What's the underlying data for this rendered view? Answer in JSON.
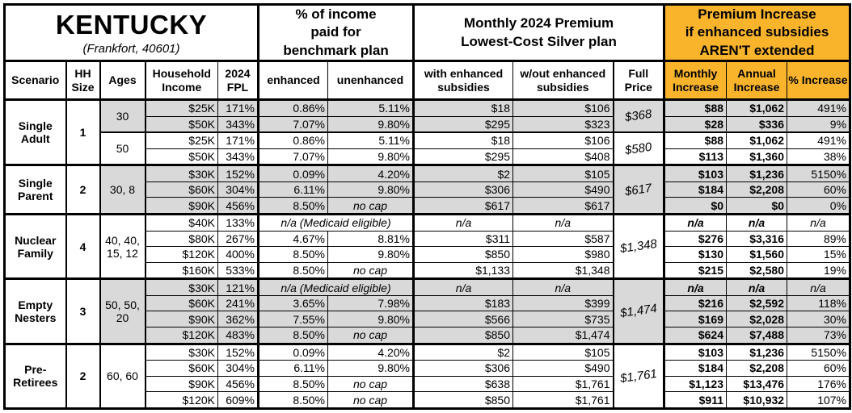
{
  "colors": {
    "accent": "#F9B42C",
    "shade": "#D9D9D9"
  },
  "table": {
    "title": "KENTUCKY",
    "subtitle": "(Frankfort, 40601)",
    "sections": {
      "benchmark": "% of income\npaid for\nbenchmark plan",
      "premium": "Monthly 2024 Premium\nLowest-Cost Silver plan",
      "increase": "Premium Increase\nif enhanced subsidies\nAREN'T extended"
    },
    "columns": {
      "scenario": "Scenario",
      "hh": "HH Size",
      "ages": "Ages",
      "income": "Household Income",
      "fpl": "2024 FPL",
      "enhanced": "enhanced",
      "unenhanced": "unenhanced",
      "with_sub": "with enhanced subsidies",
      "wout_sub": "w/out enhanced subsidies",
      "full": "Full Price",
      "monthly": "Monthly Increase",
      "annual": "Annual Increase",
      "pct": "% Increase"
    },
    "medicaid_label": "n/a (Medicaid eligible)",
    "groups": [
      {
        "scenario": "Single\nAdult",
        "hh_size": "1",
        "subgroups": [
          {
            "ages": "30",
            "shade": true,
            "full_price": "$368",
            "rows": [
              {
                "income": "$25K",
                "fpl": "171%",
                "enhanced": "0.86%",
                "unenhanced": "5.11%",
                "with_sub": "$18",
                "wout_sub": "$106",
                "monthly": "$88",
                "annual": "$1,062",
                "pct": "491%"
              },
              {
                "income": "$50K",
                "fpl": "343%",
                "enhanced": "7.07%",
                "unenhanced": "9.80%",
                "with_sub": "$295",
                "wout_sub": "$323",
                "monthly": "$28",
                "annual": "$336",
                "pct": "9%"
              }
            ]
          },
          {
            "ages": "50",
            "shade": false,
            "full_price": "$580",
            "rows": [
              {
                "income": "$25K",
                "fpl": "171%",
                "enhanced": "0.86%",
                "unenhanced": "5.11%",
                "with_sub": "$18",
                "wout_sub": "$106",
                "monthly": "$88",
                "annual": "$1,062",
                "pct": "491%"
              },
              {
                "income": "$50K",
                "fpl": "343%",
                "enhanced": "7.07%",
                "unenhanced": "9.80%",
                "with_sub": "$295",
                "wout_sub": "$408",
                "monthly": "$113",
                "annual": "$1,360",
                "pct": "38%"
              }
            ]
          }
        ]
      },
      {
        "scenario": "Single\nParent",
        "hh_size": "2",
        "subgroups": [
          {
            "ages": "30, 8",
            "shade": true,
            "full_price": "$617",
            "rows": [
              {
                "income": "$30K",
                "fpl": "152%",
                "enhanced": "0.09%",
                "unenhanced": "4.20%",
                "with_sub": "$2",
                "wout_sub": "$105",
                "monthly": "$103",
                "annual": "$1,236",
                "pct": "5150%"
              },
              {
                "income": "$60K",
                "fpl": "304%",
                "enhanced": "6.11%",
                "unenhanced": "9.80%",
                "with_sub": "$306",
                "wout_sub": "$490",
                "monthly": "$184",
                "annual": "$2,208",
                "pct": "60%"
              },
              {
                "income": "$90K",
                "fpl": "456%",
                "enhanced": "8.50%",
                "unenhanced": "no cap",
                "with_sub": "$617",
                "wout_sub": "$617",
                "monthly": "$0",
                "annual": "$0",
                "pct": "0%"
              }
            ]
          }
        ]
      },
      {
        "scenario": "Nuclear\nFamily",
        "hh_size": "4",
        "subgroups": [
          {
            "ages": "40, 40,\n15, 12",
            "shade": false,
            "full_price": "$1,348",
            "rows": [
              {
                "income": "$40K",
                "fpl": "133%",
                "medicaid": true,
                "enhanced": "n/a",
                "unenhanced": "n/a",
                "with_sub": "n/a",
                "wout_sub": "n/a",
                "monthly": "n/a",
                "annual": "n/a",
                "pct": "n/a"
              },
              {
                "income": "$80K",
                "fpl": "267%",
                "enhanced": "4.67%",
                "unenhanced": "8.81%",
                "with_sub": "$311",
                "wout_sub": "$587",
                "monthly": "$276",
                "annual": "$3,316",
                "pct": "89%"
              },
              {
                "income": "$120K",
                "fpl": "400%",
                "enhanced": "8.50%",
                "unenhanced": "9.80%",
                "with_sub": "$850",
                "wout_sub": "$980",
                "monthly": "$130",
                "annual": "$1,560",
                "pct": "15%"
              },
              {
                "income": "$160K",
                "fpl": "533%",
                "enhanced": "8.50%",
                "unenhanced": "no cap",
                "with_sub": "$1,133",
                "wout_sub": "$1,348",
                "monthly": "$215",
                "annual": "$2,580",
                "pct": "19%"
              }
            ]
          }
        ]
      },
      {
        "scenario": "Empty\nNesters",
        "hh_size": "3",
        "subgroups": [
          {
            "ages": "50, 50,\n20",
            "shade": true,
            "full_price": "$1,474",
            "rows": [
              {
                "income": "$30K",
                "fpl": "121%",
                "medicaid": true,
                "enhanced": "n/a",
                "unenhanced": "n/a",
                "with_sub": "n/a",
                "wout_sub": "n/a",
                "monthly": "n/a",
                "annual": "n/a",
                "pct": "n/a"
              },
              {
                "income": "$60K",
                "fpl": "241%",
                "enhanced": "3.65%",
                "unenhanced": "7.98%",
                "with_sub": "$183",
                "wout_sub": "$399",
                "monthly": "$216",
                "annual": "$2,592",
                "pct": "118%"
              },
              {
                "income": "$90K",
                "fpl": "362%",
                "enhanced": "7.55%",
                "unenhanced": "9.80%",
                "with_sub": "$566",
                "wout_sub": "$735",
                "monthly": "$169",
                "annual": "$2,028",
                "pct": "30%"
              },
              {
                "income": "$120K",
                "fpl": "483%",
                "enhanced": "8.50%",
                "unenhanced": "no cap",
                "with_sub": "$850",
                "wout_sub": "$1,474",
                "monthly": "$624",
                "annual": "$7,488",
                "pct": "73%"
              }
            ]
          }
        ]
      },
      {
        "scenario": "Pre-\nRetirees",
        "hh_size": "2",
        "subgroups": [
          {
            "ages": "60, 60",
            "shade": false,
            "full_price": "$1,761",
            "rows": [
              {
                "income": "$30K",
                "fpl": "152%",
                "enhanced": "0.09%",
                "unenhanced": "4.20%",
                "with_sub": "$2",
                "wout_sub": "$105",
                "monthly": "$103",
                "annual": "$1,236",
                "pct": "5150%"
              },
              {
                "income": "$60K",
                "fpl": "304%",
                "enhanced": "6.11%",
                "unenhanced": "9.80%",
                "with_sub": "$306",
                "wout_sub": "$490",
                "monthly": "$184",
                "annual": "$2,208",
                "pct": "60%"
              },
              {
                "income": "$90K",
                "fpl": "456%",
                "enhanced": "8.50%",
                "unenhanced": "no cap",
                "with_sub": "$638",
                "wout_sub": "$1,761",
                "monthly": "$1,123",
                "annual": "$13,476",
                "pct": "176%"
              },
              {
                "income": "$120K",
                "fpl": "609%",
                "enhanced": "8.50%",
                "unenhanced": "no cap",
                "with_sub": "$850",
                "wout_sub": "$1,761",
                "monthly": "$911",
                "annual": "$10,932",
                "pct": "107%"
              }
            ]
          }
        ]
      }
    ]
  }
}
